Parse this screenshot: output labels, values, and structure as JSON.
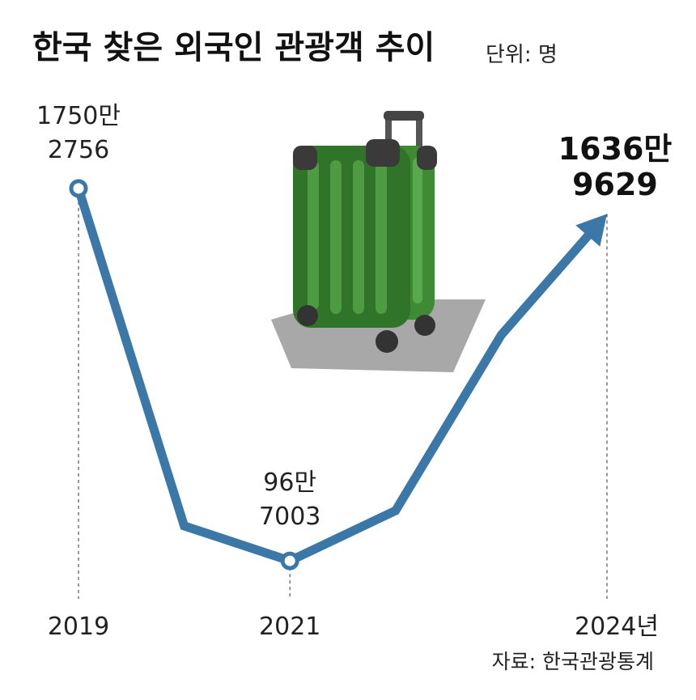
{
  "chart_data": {
    "type": "line",
    "title": "한국 찾은 외국인 관광객 추이",
    "unit": "단위: 명",
    "source": "자료: 한국관광통계",
    "categories": [
      "2019",
      null,
      "2021",
      null,
      null,
      "2024년"
    ],
    "values": [
      17502756,
      2520000,
      967003,
      3200000,
      11000000,
      16369629
    ],
    "value_labels": [
      "1750만\n2756",
      null,
      "96만\n7003",
      null,
      null,
      "1636만\n9629"
    ],
    "color": "#3b78a7",
    "ylim": [
      0,
      18000000
    ]
  }
}
